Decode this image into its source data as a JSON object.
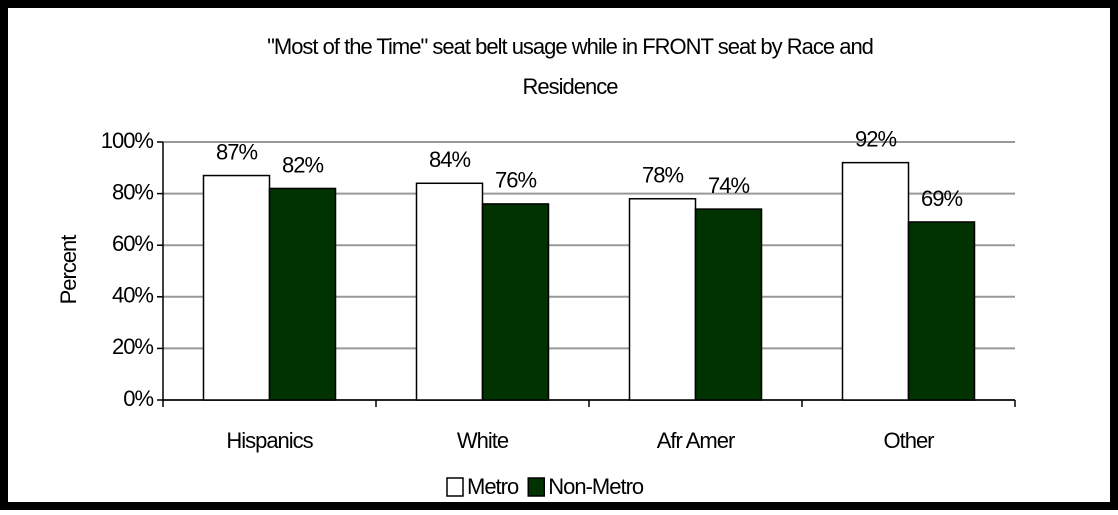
{
  "chart_data": {
    "type": "bar",
    "title": "\"Most of the Time\" seat belt usage while in FRONT seat by Race and",
    "subtitle": "Residence",
    "y_label": "Percent",
    "categories": [
      "Hispanics",
      "White",
      "Afr Amer",
      "Other"
    ],
    "series": [
      {
        "name": "Metro",
        "color": "#ffffff",
        "values": [
          87,
          84,
          78,
          92
        ],
        "value_labels": [
          "87%",
          "84%",
          "78%",
          "92%"
        ]
      },
      {
        "name": "Non-Metro",
        "color": "#003300",
        "values": [
          82,
          76,
          74,
          69
        ],
        "value_labels": [
          "82%",
          "76%",
          "74%",
          "69%"
        ]
      }
    ],
    "ylim": [
      0,
      100
    ],
    "yticks": [
      {
        "value": 0,
        "label": "0%"
      },
      {
        "value": 20,
        "label": "20%"
      },
      {
        "value": 40,
        "label": "40%"
      },
      {
        "value": 60,
        "label": "60%"
      },
      {
        "value": 80,
        "label": "80%"
      },
      {
        "value": 100,
        "label": "100%"
      }
    ],
    "grid": true,
    "legend": "bottom"
  }
}
